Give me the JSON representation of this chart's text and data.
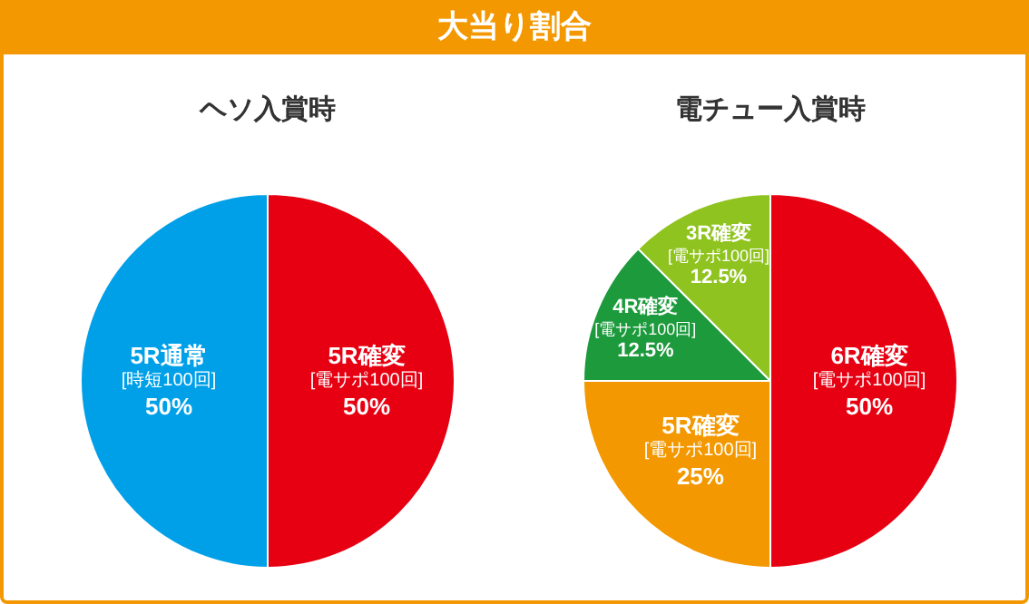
{
  "chart_data": [
    {
      "type": "pie",
      "title": "ヘソ入賞時",
      "annotations": [
        "大当り割合"
      ],
      "categories": [
        "5R確変\n[電サポ100回]",
        "5R通常\n[時短100回]"
      ],
      "values": [
        50,
        50
      ],
      "colors": [
        "#e60012",
        "#00a0e9"
      ],
      "value_labels": [
        "50%",
        "50%"
      ]
    },
    {
      "type": "pie",
      "title": "電チュー入賞時",
      "categories": [
        "6R確変\n[電サポ100回]",
        "5R確変\n[電サポ100回]",
        "4R確変\n[電サポ100回]",
        "3R確変\n[電サポ100回]"
      ],
      "values": [
        50,
        25,
        12.5,
        12.5
      ],
      "colors": [
        "#e60012",
        "#f39800",
        "#1d9a3c",
        "#8fc31f"
      ],
      "value_labels": [
        "50%",
        "25%",
        "12.5%",
        "12.5%"
      ]
    }
  ]
}
